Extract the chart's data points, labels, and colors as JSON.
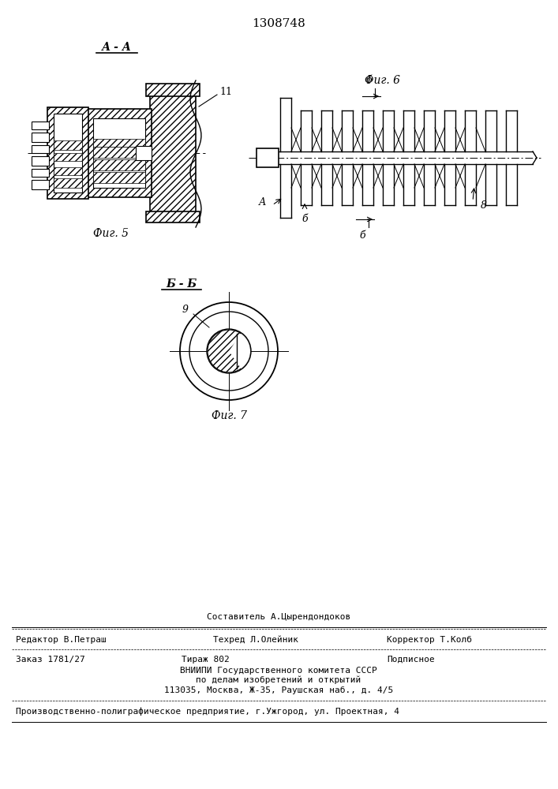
{
  "title": "1308748",
  "bg_color": "#ffffff",
  "line_color": "#000000",
  "fig_label_AA": "А - А",
  "fig_label_BB": "Б - Б",
  "fig5_label": "Фиг. 5",
  "fig6_label": "Фиг. 6",
  "fig7_label": "Фиг. 7",
  "footer_sestavitel": "Составитель А.Цырендондоков",
  "footer_line1_left": "Редактор В.Петраш",
  "footer_line1_mid": "Техред Л.Олейник",
  "footer_line1_right": "Корректор Т.Колб",
  "footer_line2_left": "Заказ 1781/27",
  "footer_line2_mid": "Тираж 802",
  "footer_line2_right": "Подписное",
  "footer_line3": "ВНИИПИ Государственного комитета СССР",
  "footer_line4": "по делам изобретений и открытий",
  "footer_line5": "113035, Москва, Ж-35, Раушская наб., д. 4/5",
  "footer_bottom": "Производственно-полиграфическое предприятие, г.Ужгород, ул. Проектная, 4",
  "label_11": "11",
  "label_A": "А",
  "label_B1": "б",
  "label_B2": "б",
  "label_B3": "б",
  "label_8": "8",
  "label_9": "9"
}
